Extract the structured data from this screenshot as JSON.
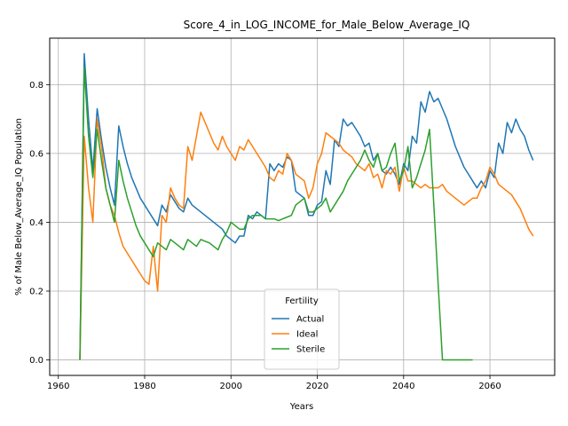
{
  "chart_data": {
    "type": "line",
    "title": "Score_4_in_LOG_INCOME_for_Male_Below_Average_IQ",
    "xlabel": "Years",
    "ylabel": "% of Male Below_Average_IQ Population",
    "xlim": [
      1958,
      2075
    ],
    "ylim": [
      -0.045,
      0.935
    ],
    "xticks": [
      1960,
      1980,
      2000,
      2020,
      2040,
      2060
    ],
    "yticks": [
      0.0,
      0.2,
      0.4,
      0.6,
      0.8
    ],
    "ytick_labels": [
      "0.0",
      "0.2",
      "0.4",
      "0.6",
      "0.8"
    ],
    "grid": true,
    "legend": {
      "title": "Fertility",
      "placement": "lower-center"
    },
    "series": [
      {
        "name": "Actual",
        "color": "#1f77b4",
        "points": [
          [
            1965,
            0.0
          ],
          [
            1966,
            0.89
          ],
          [
            1967,
            0.7
          ],
          [
            1968,
            0.55
          ],
          [
            1969,
            0.73
          ],
          [
            1970,
            0.64
          ],
          [
            1971,
            0.56
          ],
          [
            1972,
            0.5
          ],
          [
            1973,
            0.45
          ],
          [
            1974,
            0.68
          ],
          [
            1975,
            0.62
          ],
          [
            1976,
            0.57
          ],
          [
            1977,
            0.53
          ],
          [
            1978,
            0.5
          ],
          [
            1979,
            0.47
          ],
          [
            1980,
            0.45
          ],
          [
            1981,
            0.43
          ],
          [
            1982,
            0.41
          ],
          [
            1983,
            0.39
          ],
          [
            1984,
            0.45
          ],
          [
            1985,
            0.43
          ],
          [
            1986,
            0.48
          ],
          [
            1987,
            0.46
          ],
          [
            1988,
            0.44
          ],
          [
            1989,
            0.43
          ],
          [
            1990,
            0.47
          ],
          [
            1991,
            0.45
          ],
          [
            1992,
            0.44
          ],
          [
            1993,
            0.43
          ],
          [
            1994,
            0.42
          ],
          [
            1995,
            0.41
          ],
          [
            1996,
            0.4
          ],
          [
            1997,
            0.39
          ],
          [
            1998,
            0.38
          ],
          [
            1999,
            0.36
          ],
          [
            2000,
            0.35
          ],
          [
            2001,
            0.34
          ],
          [
            2002,
            0.36
          ],
          [
            2003,
            0.36
          ],
          [
            2004,
            0.42
          ],
          [
            2005,
            0.41
          ],
          [
            2006,
            0.43
          ],
          [
            2007,
            0.42
          ],
          [
            2008,
            0.41
          ],
          [
            2009,
            0.57
          ],
          [
            2010,
            0.55
          ],
          [
            2011,
            0.57
          ],
          [
            2012,
            0.56
          ],
          [
            2013,
            0.59
          ],
          [
            2014,
            0.58
          ],
          [
            2015,
            0.49
          ],
          [
            2016,
            0.48
          ],
          [
            2017,
            0.47
          ],
          [
            2018,
            0.42
          ],
          [
            2019,
            0.42
          ],
          [
            2020,
            0.45
          ],
          [
            2021,
            0.46
          ],
          [
            2022,
            0.55
          ],
          [
            2023,
            0.51
          ],
          [
            2024,
            0.64
          ],
          [
            2025,
            0.62
          ],
          [
            2026,
            0.7
          ],
          [
            2027,
            0.68
          ],
          [
            2028,
            0.69
          ],
          [
            2029,
            0.67
          ],
          [
            2030,
            0.65
          ],
          [
            2031,
            0.62
          ],
          [
            2032,
            0.63
          ],
          [
            2033,
            0.58
          ],
          [
            2034,
            0.6
          ],
          [
            2035,
            0.55
          ],
          [
            2036,
            0.54
          ],
          [
            2037,
            0.56
          ],
          [
            2038,
            0.54
          ],
          [
            2039,
            0.51
          ],
          [
            2040,
            0.57
          ],
          [
            2041,
            0.55
          ],
          [
            2042,
            0.65
          ],
          [
            2043,
            0.63
          ],
          [
            2044,
            0.75
          ],
          [
            2045,
            0.72
          ],
          [
            2046,
            0.78
          ],
          [
            2047,
            0.75
          ],
          [
            2048,
            0.76
          ],
          [
            2049,
            0.73
          ],
          [
            2050,
            0.7
          ],
          [
            2051,
            0.66
          ],
          [
            2052,
            0.62
          ],
          [
            2053,
            0.59
          ],
          [
            2054,
            0.56
          ],
          [
            2055,
            0.54
          ],
          [
            2056,
            0.52
          ],
          [
            2057,
            0.5
          ],
          [
            2058,
            0.52
          ],
          [
            2059,
            0.5
          ],
          [
            2060,
            0.55
          ],
          [
            2061,
            0.53
          ],
          [
            2062,
            0.63
          ],
          [
            2063,
            0.6
          ],
          [
            2064,
            0.69
          ],
          [
            2065,
            0.66
          ],
          [
            2066,
            0.7
          ],
          [
            2067,
            0.67
          ],
          [
            2068,
            0.65
          ],
          [
            2069,
            0.61
          ],
          [
            2070,
            0.58
          ]
        ]
      },
      {
        "name": "Ideal",
        "color": "#ff7f0e",
        "points": [
          [
            1965,
            0.0
          ],
          [
            1966,
            0.65
          ],
          [
            1967,
            0.5
          ],
          [
            1968,
            0.4
          ],
          [
            1969,
            0.7
          ],
          [
            1970,
            0.62
          ],
          [
            1971,
            0.5
          ],
          [
            1972,
            0.45
          ],
          [
            1973,
            0.42
          ],
          [
            1974,
            0.37
          ],
          [
            1975,
            0.33
          ],
          [
            1976,
            0.31
          ],
          [
            1977,
            0.29
          ],
          [
            1978,
            0.27
          ],
          [
            1979,
            0.25
          ],
          [
            1980,
            0.23
          ],
          [
            1981,
            0.22
          ],
          [
            1982,
            0.33
          ],
          [
            1983,
            0.2
          ],
          [
            1984,
            0.42
          ],
          [
            1985,
            0.4
          ],
          [
            1986,
            0.5
          ],
          [
            1987,
            0.47
          ],
          [
            1988,
            0.45
          ],
          [
            1989,
            0.44
          ],
          [
            1990,
            0.62
          ],
          [
            1991,
            0.58
          ],
          [
            1992,
            0.65
          ],
          [
            1993,
            0.72
          ],
          [
            1994,
            0.69
          ],
          [
            1995,
            0.66
          ],
          [
            1996,
            0.63
          ],
          [
            1997,
            0.61
          ],
          [
            1998,
            0.65
          ],
          [
            1999,
            0.62
          ],
          [
            2000,
            0.6
          ],
          [
            2001,
            0.58
          ],
          [
            2002,
            0.62
          ],
          [
            2003,
            0.61
          ],
          [
            2004,
            0.64
          ],
          [
            2005,
            0.62
          ],
          [
            2006,
            0.6
          ],
          [
            2007,
            0.58
          ],
          [
            2008,
            0.56
          ],
          [
            2009,
            0.53
          ],
          [
            2010,
            0.52
          ],
          [
            2011,
            0.55
          ],
          [
            2012,
            0.54
          ],
          [
            2013,
            0.6
          ],
          [
            2014,
            0.58
          ],
          [
            2015,
            0.54
          ],
          [
            2016,
            0.53
          ],
          [
            2017,
            0.52
          ],
          [
            2018,
            0.47
          ],
          [
            2019,
            0.5
          ],
          [
            2020,
            0.57
          ],
          [
            2021,
            0.6
          ],
          [
            2022,
            0.66
          ],
          [
            2023,
            0.65
          ],
          [
            2024,
            0.64
          ],
          [
            2025,
            0.63
          ],
          [
            2026,
            0.61
          ],
          [
            2027,
            0.6
          ],
          [
            2028,
            0.59
          ],
          [
            2029,
            0.57
          ],
          [
            2030,
            0.56
          ],
          [
            2031,
            0.55
          ],
          [
            2032,
            0.57
          ],
          [
            2033,
            0.53
          ],
          [
            2034,
            0.54
          ],
          [
            2035,
            0.5
          ],
          [
            2036,
            0.55
          ],
          [
            2037,
            0.54
          ],
          [
            2038,
            0.56
          ],
          [
            2039,
            0.49
          ],
          [
            2040,
            0.56
          ],
          [
            2041,
            0.52
          ],
          [
            2042,
            0.52
          ],
          [
            2043,
            0.51
          ],
          [
            2044,
            0.5
          ],
          [
            2045,
            0.51
          ],
          [
            2046,
            0.5
          ],
          [
            2047,
            0.5
          ],
          [
            2048,
            0.5
          ],
          [
            2049,
            0.51
          ],
          [
            2050,
            0.49
          ],
          [
            2051,
            0.48
          ],
          [
            2052,
            0.47
          ],
          [
            2053,
            0.46
          ],
          [
            2054,
            0.45
          ],
          [
            2055,
            0.46
          ],
          [
            2056,
            0.47
          ],
          [
            2057,
            0.47
          ],
          [
            2058,
            0.5
          ],
          [
            2059,
            0.52
          ],
          [
            2060,
            0.56
          ],
          [
            2061,
            0.54
          ],
          [
            2062,
            0.51
          ],
          [
            2063,
            0.5
          ],
          [
            2064,
            0.49
          ],
          [
            2065,
            0.48
          ],
          [
            2066,
            0.46
          ],
          [
            2067,
            0.44
          ],
          [
            2068,
            0.41
          ],
          [
            2069,
            0.38
          ],
          [
            2070,
            0.36
          ]
        ]
      },
      {
        "name": "Sterile",
        "color": "#2ca02c",
        "points": [
          [
            1965,
            0.0
          ],
          [
            1966,
            0.85
          ],
          [
            1967,
            0.65
          ],
          [
            1968,
            0.53
          ],
          [
            1969,
            0.67
          ],
          [
            1970,
            0.58
          ],
          [
            1971,
            0.5
          ],
          [
            1972,
            0.45
          ],
          [
            1973,
            0.4
          ],
          [
            1974,
            0.58
          ],
          [
            1975,
            0.52
          ],
          [
            1976,
            0.47
          ],
          [
            1977,
            0.43
          ],
          [
            1978,
            0.39
          ],
          [
            1979,
            0.36
          ],
          [
            1980,
            0.34
          ],
          [
            1981,
            0.32
          ],
          [
            1982,
            0.3
          ],
          [
            1983,
            0.34
          ],
          [
            1984,
            0.33
          ],
          [
            1985,
            0.32
          ],
          [
            1986,
            0.35
          ],
          [
            1987,
            0.34
          ],
          [
            1988,
            0.33
          ],
          [
            1989,
            0.32
          ],
          [
            1990,
            0.35
          ],
          [
            1991,
            0.34
          ],
          [
            1992,
            0.33
          ],
          [
            1993,
            0.35
          ],
          [
            1994,
            0.345
          ],
          [
            1995,
            0.34
          ],
          [
            1996,
            0.33
          ],
          [
            1997,
            0.32
          ],
          [
            1998,
            0.35
          ],
          [
            1999,
            0.37
          ],
          [
            2000,
            0.4
          ],
          [
            2001,
            0.39
          ],
          [
            2002,
            0.38
          ],
          [
            2003,
            0.38
          ],
          [
            2004,
            0.41
          ],
          [
            2005,
            0.42
          ],
          [
            2006,
            0.42
          ],
          [
            2007,
            0.42
          ],
          [
            2008,
            0.41
          ],
          [
            2009,
            0.41
          ],
          [
            2010,
            0.41
          ],
          [
            2011,
            0.405
          ],
          [
            2012,
            0.41
          ],
          [
            2013,
            0.415
          ],
          [
            2014,
            0.42
          ],
          [
            2015,
            0.45
          ],
          [
            2016,
            0.46
          ],
          [
            2017,
            0.47
          ],
          [
            2018,
            0.43
          ],
          [
            2019,
            0.43
          ],
          [
            2020,
            0.44
          ],
          [
            2021,
            0.45
          ],
          [
            2022,
            0.47
          ],
          [
            2023,
            0.43
          ],
          [
            2024,
            0.45
          ],
          [
            2025,
            0.47
          ],
          [
            2026,
            0.49
          ],
          [
            2027,
            0.52
          ],
          [
            2028,
            0.54
          ],
          [
            2029,
            0.56
          ],
          [
            2030,
            0.58
          ],
          [
            2031,
            0.61
          ],
          [
            2032,
            0.58
          ],
          [
            2033,
            0.56
          ],
          [
            2034,
            0.6
          ],
          [
            2035,
            0.55
          ],
          [
            2036,
            0.56
          ],
          [
            2037,
            0.6
          ],
          [
            2038,
            0.63
          ],
          [
            2039,
            0.52
          ],
          [
            2040,
            0.55
          ],
          [
            2041,
            0.62
          ],
          [
            2042,
            0.5
          ],
          [
            2043,
            0.53
          ],
          [
            2044,
            0.57
          ],
          [
            2045,
            0.61
          ],
          [
            2046,
            0.67
          ],
          [
            2047,
            0.45
          ],
          [
            2048,
            0.22
          ],
          [
            2049,
            0.0
          ],
          [
            2050,
            0.0
          ],
          [
            2051,
            0.0
          ],
          [
            2052,
            0.0
          ],
          [
            2053,
            0.0
          ],
          [
            2054,
            0.0
          ],
          [
            2055,
            0.0
          ],
          [
            2056,
            0.0
          ]
        ]
      }
    ]
  }
}
